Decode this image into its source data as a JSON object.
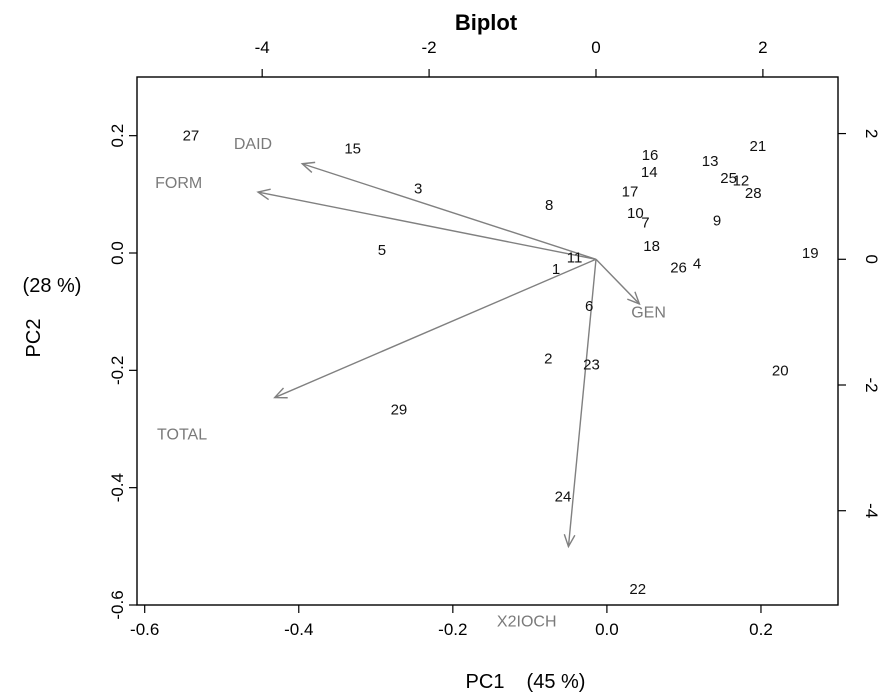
{
  "chart_data": {
    "type": "scatter",
    "title": "Biplot",
    "xlabel": "PC1",
    "xlabel_pct": "(45 %)",
    "ylabel": "PC2",
    "ylabel_pct": "(28 %)",
    "xlim": [
      -0.61,
      0.3
    ],
    "ylim": [
      -0.6,
      0.3
    ],
    "top_lim": [
      -5.5,
      2.9
    ],
    "right_lim": [
      -5.5,
      2.9
    ],
    "x_ticks": [
      -0.6,
      -0.4,
      -0.2,
      0.0,
      0.2
    ],
    "x_tick_labels": [
      "-0.6",
      "-0.4",
      "-0.2",
      "0.0",
      "0.2"
    ],
    "y_ticks": [
      -0.6,
      -0.4,
      -0.2,
      0.0,
      0.2
    ],
    "y_tick_labels": [
      "-0.6",
      "-0.4",
      "-0.2",
      "0.0",
      "0.2"
    ],
    "top_ticks": [
      -4,
      -2,
      0,
      2
    ],
    "top_tick_labels": [
      "-4",
      "-2",
      "0",
      "2"
    ],
    "right_ticks": [
      -4,
      -2,
      0,
      2
    ],
    "right_tick_labels": [
      "-4",
      "-2",
      "0",
      "2"
    ],
    "observations": [
      {
        "label": "27",
        "x": -0.54,
        "y": 0.2
      },
      {
        "label": "15",
        "x": -0.33,
        "y": 0.178
      },
      {
        "label": "3",
        "x": -0.245,
        "y": 0.11
      },
      {
        "label": "5",
        "x": -0.292,
        "y": 0.005
      },
      {
        "label": "8",
        "x": -0.075,
        "y": 0.082
      },
      {
        "label": "11",
        "x": -0.042,
        "y": -0.008
      },
      {
        "label": "1",
        "x": -0.066,
        "y": -0.027
      },
      {
        "label": "6",
        "x": -0.023,
        "y": -0.09
      },
      {
        "label": "2",
        "x": -0.076,
        "y": -0.18
      },
      {
        "label": "23",
        "x": -0.02,
        "y": -0.19
      },
      {
        "label": "29",
        "x": -0.27,
        "y": -0.267
      },
      {
        "label": "24",
        "x": -0.057,
        "y": -0.415
      },
      {
        "label": "22",
        "x": 0.04,
        "y": -0.573
      },
      {
        "label": "16",
        "x": 0.056,
        "y": 0.167
      },
      {
        "label": "14",
        "x": 0.055,
        "y": 0.138
      },
      {
        "label": "17",
        "x": 0.03,
        "y": 0.105
      },
      {
        "label": "10",
        "x": 0.037,
        "y": 0.068
      },
      {
        "label": "7",
        "x": 0.05,
        "y": 0.052
      },
      {
        "label": "18",
        "x": 0.058,
        "y": 0.012
      },
      {
        "label": "26",
        "x": 0.093,
        "y": -0.025
      },
      {
        "label": "4",
        "x": 0.117,
        "y": -0.018
      },
      {
        "label": "13",
        "x": 0.134,
        "y": 0.157
      },
      {
        "label": "25",
        "x": 0.158,
        "y": 0.128
      },
      {
        "label": "12",
        "x": 0.174,
        "y": 0.124
      },
      {
        "label": "28",
        "x": 0.19,
        "y": 0.102
      },
      {
        "label": "21",
        "x": 0.196,
        "y": 0.182
      },
      {
        "label": "9",
        "x": 0.143,
        "y": 0.055
      },
      {
        "label": "19",
        "x": 0.264,
        "y": 0.0
      },
      {
        "label": "20",
        "x": 0.225,
        "y": -0.2
      }
    ],
    "variables": [
      {
        "label": "DAID",
        "x": -3.52,
        "y": 1.52,
        "label_x": -4.11,
        "label_y": 1.85
      },
      {
        "label": "FORM",
        "x": -4.05,
        "y": 1.07,
        "label_x": -5.0,
        "label_y": 1.23
      },
      {
        "label": "TOTAL",
        "x": -3.85,
        "y": -2.2,
        "label_x": -4.96,
        "label_y": -2.77
      },
      {
        "label": "GEN",
        "x": 0.52,
        "y": -0.71,
        "label_x": 0.63,
        "label_y": -0.83
      },
      {
        "label": "X2IOCH",
        "x": -0.33,
        "y": -4.57,
        "label_x": -0.83,
        "label_y": -5.75
      }
    ]
  }
}
